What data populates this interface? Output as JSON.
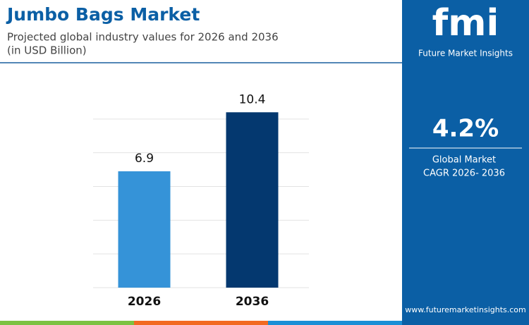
{
  "chart_data": {
    "type": "bar",
    "title": "Jumbo Bags Market",
    "subtitle": [
      "Projected global industry values for 2026 and 2036",
      "(in USD Billion)"
    ],
    "categories": [
      "2026",
      "2036"
    ],
    "values": [
      6.9,
      10.4
    ],
    "colors": [
      "#3593d8",
      "#04386f"
    ],
    "ylim": [
      0,
      12
    ],
    "yticks": [
      0,
      2,
      4,
      6,
      8,
      10
    ],
    "grid": true
  },
  "panel": {
    "logo": "fmi",
    "brand": "Future Market Insights",
    "cagr": "4.2%",
    "cagr_label": [
      "Global Market",
      "CAGR 2026- 2036"
    ],
    "website": "www.futuremarketinsights.com"
  }
}
